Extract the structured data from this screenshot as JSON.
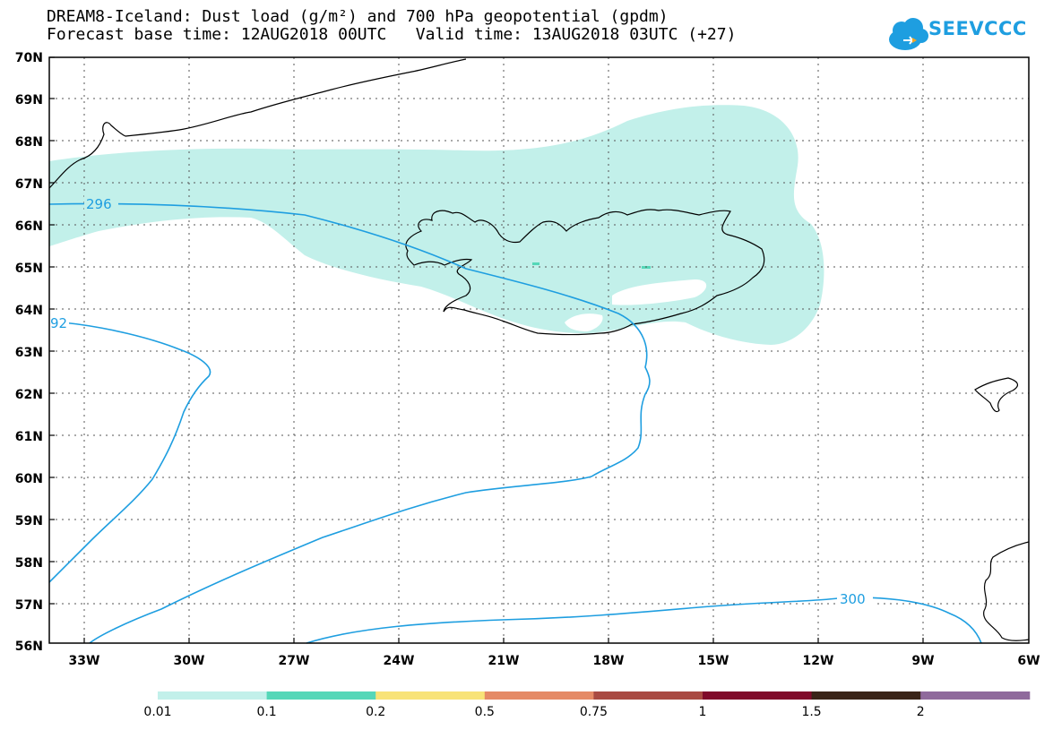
{
  "title": {
    "line1": "DREAM8-Iceland: Dust load (g/m²) and 700 hPa geopotential (gpdm)",
    "line2": "Forecast base time: 12AUG2018 00UTC   Valid time: 13AUG2018 03UTC (+27)"
  },
  "logo": {
    "text": "SEEVCCC"
  },
  "map": {
    "lat_labels": [
      "70N",
      "69N",
      "68N",
      "67N",
      "66N",
      "65N",
      "64N",
      "63N",
      "62N",
      "61N",
      "60N",
      "59N",
      "58N",
      "57N",
      "56N"
    ],
    "lon_labels": [
      "33W",
      "30W",
      "27W",
      "24W",
      "21W",
      "18W",
      "15W",
      "12W",
      "9W",
      "6W"
    ],
    "contour_labels": {
      "c296": "296",
      "c292": "92",
      "c300": "300"
    }
  },
  "colorbar": {
    "labels": [
      "0.01",
      "0.1",
      "0.2",
      "0.5",
      "0.75",
      "1",
      "1.5",
      "2"
    ],
    "colors": [
      "#c2f0ea",
      "#55d7b8",
      "#f8e378",
      "#e58a66",
      "#a94a42",
      "#800a2a",
      "#3a2418",
      "#8f6a9c"
    ]
  },
  "colors": {
    "contour": "#1e9ee0",
    "dust_light": "#c2f0ea",
    "dust_mid": "#55d7b8"
  }
}
